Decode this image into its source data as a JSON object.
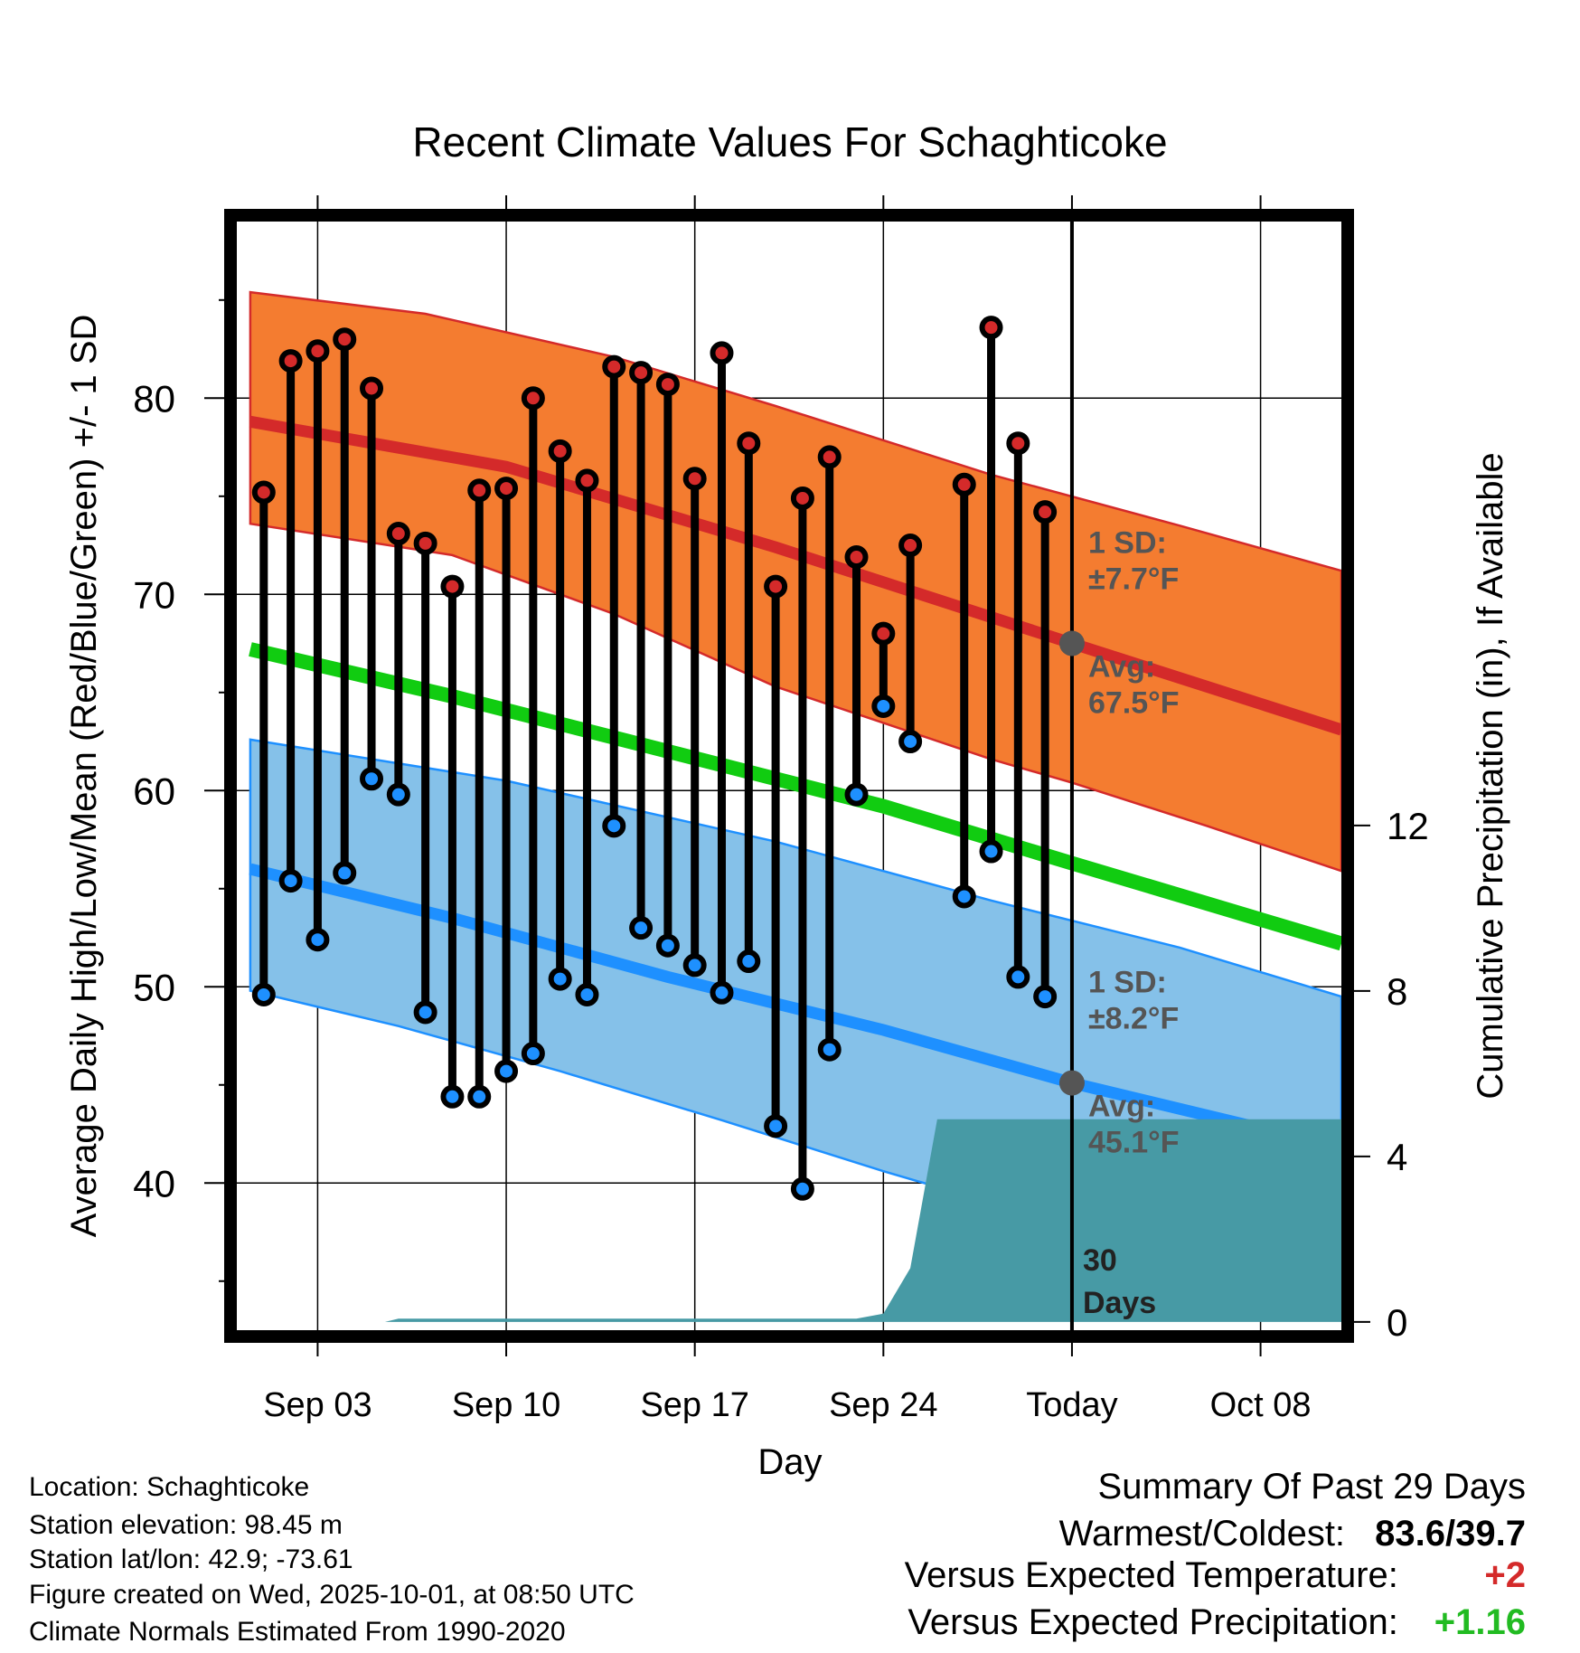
{
  "chart_data": {
    "type": "line",
    "title": "Recent Climate Values For Schaghticoke",
    "xlabel": "Day",
    "ylabel": "Average Daily High/Low/Mean (Red/Blue/Green) +/- 1 SD",
    "y2label": "Cumulative Precipitation (in), If Available",
    "xlim": [
      0,
      41
    ],
    "ylim": [
      32.5,
      89
    ],
    "y2lim": [
      -0.2,
      26.6
    ],
    "x_ticks": [
      {
        "x": 3,
        "label": "Sep 03"
      },
      {
        "x": 10,
        "label": "Sep 10"
      },
      {
        "x": 17,
        "label": "Sep 17"
      },
      {
        "x": 24,
        "label": "Sep 24"
      },
      {
        "x": 31,
        "label": "Today"
      },
      {
        "x": 38,
        "label": "Oct 08"
      }
    ],
    "y_ticks": [
      40,
      50,
      60,
      70,
      80
    ],
    "y2_ticks": [
      0,
      4,
      8,
      12
    ],
    "today_x": 31,
    "days": [
      1,
      2,
      3,
      4,
      5,
      6,
      7,
      8,
      9,
      10,
      11,
      12,
      13,
      14,
      15,
      16,
      17,
      18,
      19,
      20,
      21,
      22,
      23,
      24,
      25,
      27,
      28,
      29,
      30
    ],
    "highs": [
      75.2,
      81.9,
      82.4,
      83.0,
      80.5,
      73.1,
      72.6,
      70.4,
      75.3,
      75.4,
      80.0,
      77.3,
      75.8,
      81.6,
      81.3,
      80.7,
      75.9,
      82.3,
      77.7,
      70.4,
      74.9,
      77.0,
      71.9,
      68.0,
      72.5,
      75.6,
      83.6,
      77.7,
      74.2
    ],
    "lows": [
      49.6,
      55.4,
      52.4,
      55.8,
      60.6,
      59.8,
      48.7,
      44.4,
      44.4,
      45.7,
      46.6,
      50.4,
      49.6,
      58.2,
      53.0,
      52.1,
      51.1,
      49.7,
      51.3,
      42.9,
      39.7,
      46.8,
      59.8,
      64.3,
      62.5,
      54.6,
      56.9,
      50.5,
      49.5
    ],
    "avg_high_line": [
      [
        0.5,
        78.8
      ],
      [
        10,
        76.5
      ],
      [
        20,
        72.4
      ],
      [
        31,
        67.5
      ],
      [
        41,
        63.1
      ]
    ],
    "avg_high_upper": [
      [
        0.5,
        85.4
      ],
      [
        7,
        84.3
      ],
      [
        14,
        82.1
      ],
      [
        20,
        79.6
      ],
      [
        28,
        76.1
      ],
      [
        35,
        73.5
      ],
      [
        41,
        71.2
      ]
    ],
    "avg_high_lower": [
      [
        0.5,
        73.6
      ],
      [
        8,
        72.0
      ],
      [
        14,
        69.0
      ],
      [
        20,
        65.3
      ],
      [
        28,
        61.6
      ],
      [
        31,
        60.4
      ],
      [
        36,
        58.2
      ],
      [
        41,
        55.9
      ]
    ],
    "avg_mean_line": [
      [
        0.5,
        67.2
      ],
      [
        8,
        64.8
      ],
      [
        16,
        62.0
      ],
      [
        24,
        59.2
      ],
      [
        31,
        56.3
      ],
      [
        41,
        52.2
      ]
    ],
    "avg_low_line": [
      [
        0.5,
        56.0
      ],
      [
        8,
        53.5
      ],
      [
        16,
        50.5
      ],
      [
        24,
        47.8
      ],
      [
        31,
        45.1
      ],
      [
        41,
        41.8
      ]
    ],
    "avg_low_upper": [
      [
        0.5,
        62.6
      ],
      [
        10,
        60.5
      ],
      [
        20,
        57.4
      ],
      [
        28,
        54.4
      ],
      [
        35,
        52.0
      ],
      [
        41,
        49.5
      ]
    ],
    "avg_low_lower": [
      [
        0.5,
        49.8
      ],
      [
        6,
        48.0
      ],
      [
        12,
        45.7
      ],
      [
        18,
        43.2
      ],
      [
        24,
        40.6
      ],
      [
        31,
        37.8
      ],
      [
        41,
        34.2
      ]
    ],
    "precip_cumulative": [
      [
        0.5,
        0
      ],
      [
        5.5,
        0
      ],
      [
        6,
        0.08
      ],
      [
        20,
        0.08
      ],
      [
        23,
        0.08
      ],
      [
        24,
        0.2
      ],
      [
        25,
        1.3
      ],
      [
        26,
        4.9
      ],
      [
        41,
        4.9
      ]
    ],
    "annotations": {
      "high_sd_label": "1 SD:",
      "high_sd_value": "±7.7°F",
      "high_avg_label": "Avg:",
      "high_avg_value": "67.5°F",
      "low_sd_label": "1 SD:",
      "low_sd_value": "±8.2°F",
      "low_avg_label": "Avg:",
      "low_avg_value": "45.1°F",
      "days_number": "30",
      "days_word": "Days"
    },
    "colors": {
      "high_band": "#f47c30",
      "high_line": "#d42a2a",
      "mean_line": "#11cc11",
      "low_band": "#85c1e9",
      "low_line": "#1e90ff",
      "precip": "#479aa5",
      "high_dot": "#d42a2a",
      "low_dot": "#1e90ff",
      "annotation": "#555555"
    }
  },
  "footer": {
    "location": "Location: Schaghticoke",
    "elevation": "Station elevation: 98.45 m",
    "latlon": "Station lat/lon: 42.9; -73.61",
    "created": "Figure created on Wed, 2025-10-01, at 08:50 UTC",
    "normals": "Climate Normals Estimated From 1990-2020"
  },
  "summary": {
    "title": "Summary Of Past 29 Days",
    "warm_cold_label": "Warmest/Coldest:",
    "warm_cold_value": "83.6/39.7",
    "temp_label": "Versus Expected Temperature:",
    "temp_value": "+2",
    "precip_label": "Versus Expected Precipitation:",
    "precip_value": "+1.16"
  }
}
